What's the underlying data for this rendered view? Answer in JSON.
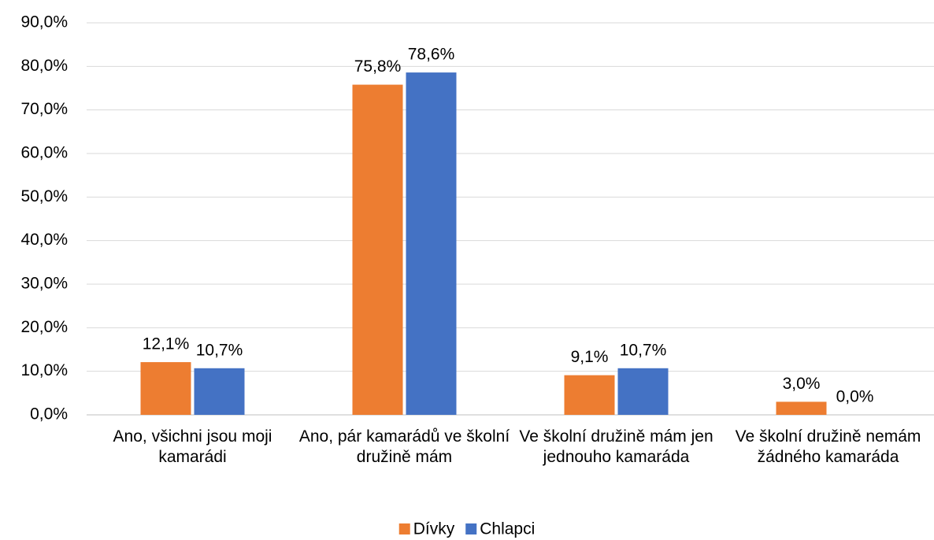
{
  "chart_data": {
    "type": "bar",
    "categories": [
      "Ano, všichni jsou moji kamarádi",
      "Ano, pár kamarádů ve školní družině mám",
      "Ve školní družině mám jen jednouho kamaráda",
      "Ve školní družině nemám žádného kamaráda"
    ],
    "series": [
      {
        "name": "Dívky",
        "color": "#ed7d31",
        "values": [
          12.1,
          75.8,
          9.1,
          3.0
        ],
        "value_labels": [
          "12,1%",
          "75,8%",
          "9,1%",
          "3,0%"
        ]
      },
      {
        "name": "Chlapci",
        "color": "#4472c4",
        "values": [
          10.7,
          78.6,
          10.7,
          0.0
        ],
        "value_labels": [
          "10,7%",
          "78,6%",
          "10,7%",
          "0,0%"
        ]
      }
    ],
    "ylim": [
      0,
      90
    ],
    "yticks": [
      {
        "value": 0,
        "label": "0,0%"
      },
      {
        "value": 10,
        "label": "10,0%"
      },
      {
        "value": 20,
        "label": "20,0%"
      },
      {
        "value": 30,
        "label": "30,0%"
      },
      {
        "value": 40,
        "label": "40,0%"
      },
      {
        "value": 50,
        "label": "50,0%"
      },
      {
        "value": 60,
        "label": "60,0%"
      },
      {
        "value": 70,
        "label": "70,0%"
      },
      {
        "value": 80,
        "label": "80,0%"
      },
      {
        "value": 90,
        "label": "90,0%"
      }
    ],
    "grid": true,
    "legend": "bottom"
  }
}
